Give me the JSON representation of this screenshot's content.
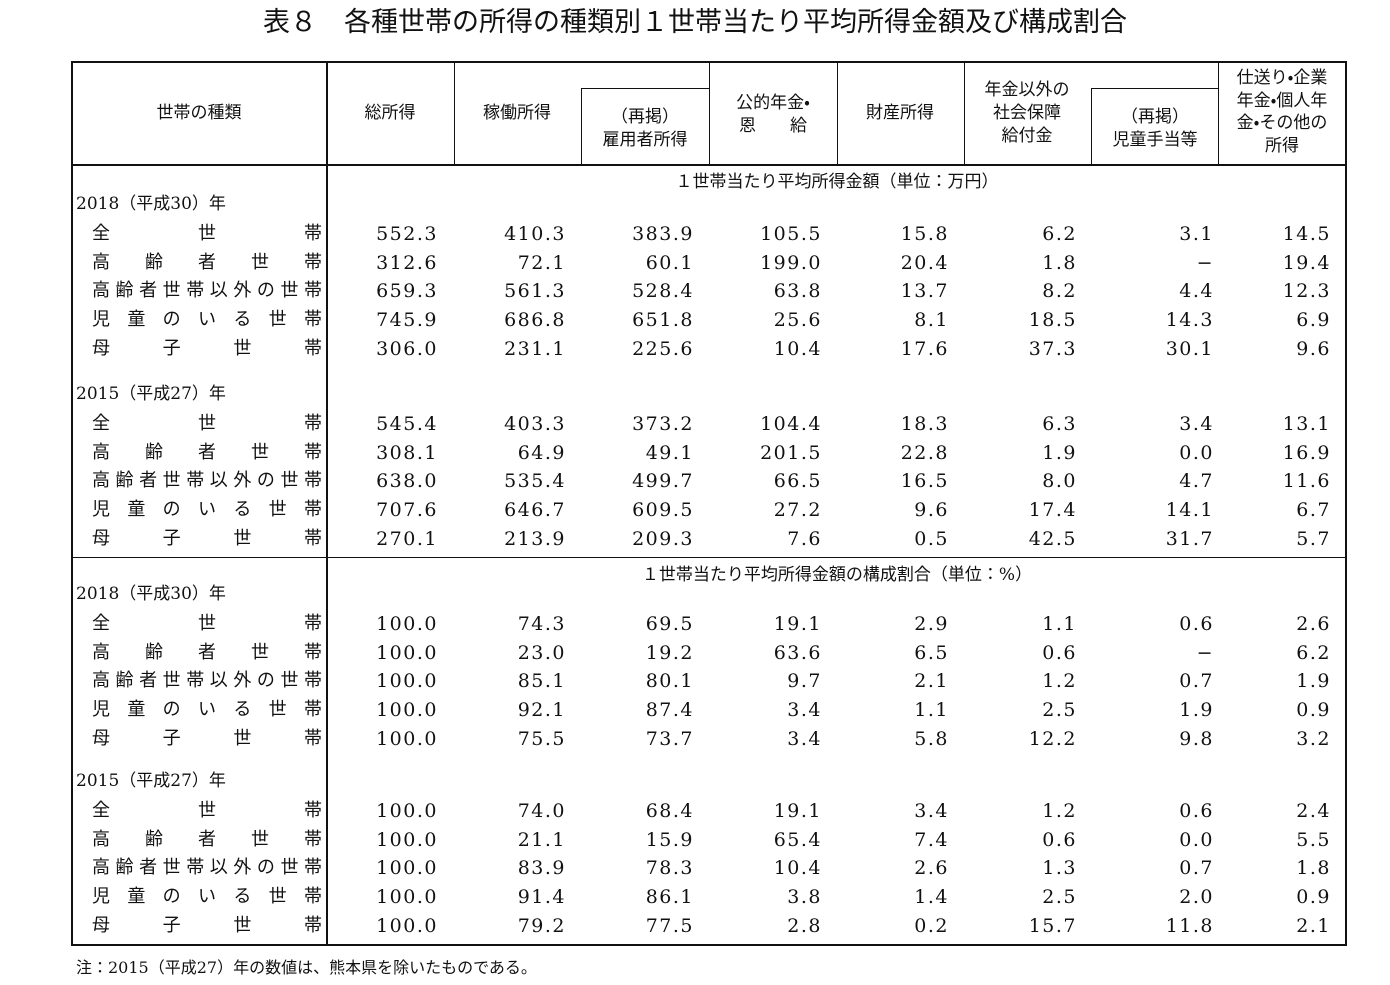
{
  "title": "表８　各種世帯の所得の種類別１世帯当たり平均所得金額及び構成割合",
  "header": {
    "columns": [
      {
        "lines": [
          "世帯の種類"
        ]
      },
      {
        "lines": [
          "総所得"
        ]
      },
      {
        "lines": [
          "稼働所得"
        ]
      },
      {
        "lines": [
          "（再掲）",
          "雇用者所得"
        ]
      },
      {
        "lines": [
          "公的年金・",
          "恩　　給"
        ]
      },
      {
        "lines": [
          "財産所得"
        ]
      },
      {
        "lines": [
          "年金以外の",
          "社会保障",
          "給付金"
        ]
      },
      {
        "lines": [
          "（再掲）",
          "児童手当等"
        ]
      },
      {
        "lines": [
          "仕送り・企業",
          "年金・個人年",
          "金・その他の",
          "所得"
        ]
      }
    ]
  },
  "sections": [
    {
      "caption": "１世帯当たり平均所得金額（単位：万円）",
      "groups": [
        {
          "label": "2018（平成30）年",
          "rows": [
            {
              "label": "全世帯",
              "cells": [
                "552.3",
                "410.3",
                "383.9",
                "105.5",
                "15.8",
                "6.2",
                "3.1",
                "14.5"
              ]
            },
            {
              "label": "高齢者世帯",
              "cells": [
                "312.6",
                "72.1",
                "60.1",
                "199.0",
                "20.4",
                "1.8",
                "−",
                "19.4"
              ]
            },
            {
              "label": "高齢者世帯以外の世帯",
              "cells": [
                "659.3",
                "561.3",
                "528.4",
                "63.8",
                "13.7",
                "8.2",
                "4.4",
                "12.3"
              ]
            },
            {
              "label": "児童のいる世帯",
              "cells": [
                "745.9",
                "686.8",
                "651.8",
                "25.6",
                "8.1",
                "18.5",
                "14.3",
                "6.9"
              ]
            },
            {
              "label": "母子世帯",
              "cells": [
                "306.0",
                "231.1",
                "225.6",
                "10.4",
                "17.6",
                "37.3",
                "30.1",
                "9.6"
              ]
            }
          ]
        },
        {
          "label": "2015（平成27）年",
          "rows": [
            {
              "label": "全世帯",
              "cells": [
                "545.4",
                "403.3",
                "373.2",
                "104.4",
                "18.3",
                "6.3",
                "3.4",
                "13.1"
              ]
            },
            {
              "label": "高齢者世帯",
              "cells": [
                "308.1",
                "64.9",
                "49.1",
                "201.5",
                "22.8",
                "1.9",
                "0.0",
                "16.9"
              ]
            },
            {
              "label": "高齢者世帯以外の世帯",
              "cells": [
                "638.0",
                "535.4",
                "499.7",
                "66.5",
                "16.5",
                "8.0",
                "4.7",
                "11.6"
              ]
            },
            {
              "label": "児童のいる世帯",
              "cells": [
                "707.6",
                "646.7",
                "609.5",
                "27.2",
                "9.6",
                "17.4",
                "14.1",
                "6.7"
              ]
            },
            {
              "label": "母子世帯",
              "cells": [
                "270.1",
                "213.9",
                "209.3",
                "7.6",
                "0.5",
                "42.5",
                "31.7",
                "5.7"
              ]
            }
          ]
        }
      ]
    },
    {
      "caption": "１世帯当たり平均所得金額の構成割合（単位：%）",
      "groups": [
        {
          "label": "2018（平成30）年",
          "rows": [
            {
              "label": "全世帯",
              "cells": [
                "100.0",
                "74.3",
                "69.5",
                "19.1",
                "2.9",
                "1.1",
                "0.6",
                "2.6"
              ]
            },
            {
              "label": "高齢者世帯",
              "cells": [
                "100.0",
                "23.0",
                "19.2",
                "63.6",
                "6.5",
                "0.6",
                "−",
                "6.2"
              ]
            },
            {
              "label": "高齢者世帯以外の世帯",
              "cells": [
                "100.0",
                "85.1",
                "80.1",
                "9.7",
                "2.1",
                "1.2",
                "0.7",
                "1.9"
              ]
            },
            {
              "label": "児童のいる世帯",
              "cells": [
                "100.0",
                "92.1",
                "87.4",
                "3.4",
                "1.1",
                "2.5",
                "1.9",
                "0.9"
              ]
            },
            {
              "label": "母子世帯",
              "cells": [
                "100.0",
                "75.5",
                "73.7",
                "3.4",
                "5.8",
                "12.2",
                "9.8",
                "3.2"
              ]
            }
          ]
        },
        {
          "label": "2015（平成27）年",
          "rows": [
            {
              "label": "全世帯",
              "cells": [
                "100.0",
                "74.0",
                "68.4",
                "19.1",
                "3.4",
                "1.2",
                "0.6",
                "2.4"
              ]
            },
            {
              "label": "高齢者世帯",
              "cells": [
                "100.0",
                "21.1",
                "15.9",
                "65.4",
                "7.4",
                "0.6",
                "0.0",
                "5.5"
              ]
            },
            {
              "label": "高齢者世帯以外の世帯",
              "cells": [
                "100.0",
                "83.9",
                "78.3",
                "10.4",
                "2.6",
                "1.3",
                "0.7",
                "1.8"
              ]
            },
            {
              "label": "児童のいる世帯",
              "cells": [
                "100.0",
                "91.4",
                "86.1",
                "3.8",
                "1.4",
                "2.5",
                "2.0",
                "0.9"
              ]
            },
            {
              "label": "母子世帯",
              "cells": [
                "100.0",
                "79.2",
                "77.5",
                "2.8",
                "0.2",
                "15.7",
                "11.8",
                "2.1"
              ]
            }
          ]
        }
      ]
    }
  ],
  "note": "注：2015（平成27）年の数値は、熊本県を除いたものである。"
}
